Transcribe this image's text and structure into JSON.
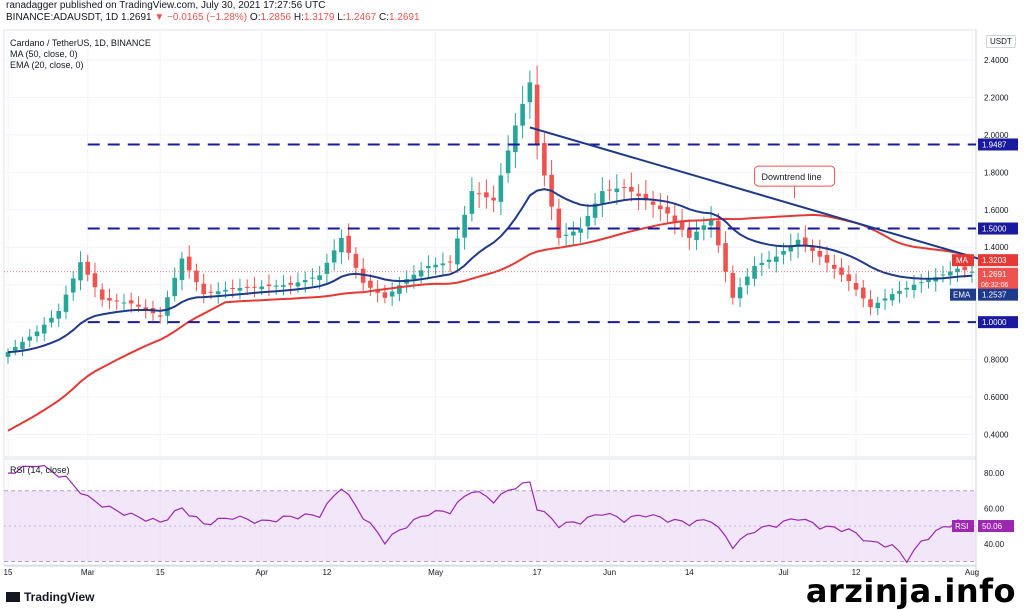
{
  "header": {
    "publisher_line": "ranadagger published on TradingView.com, July 30, 2021 17:27:56 UTC",
    "symbol_line": "BINANCE:ADAUSDT, 1D",
    "price": "1.2691",
    "change": "▼ −0.0165 (−1.28%)",
    "o_label": "O:",
    "o_value": "1.2856",
    "h_label": "H:",
    "h_value": "1.3179",
    "l_label": "L:",
    "l_value": "1.2467",
    "c_label": "C:",
    "c_value": "1.2691"
  },
  "legend": {
    "title": "Cardano / TetherUS, 1D, BINANCE",
    "ma": "MA (50, close, 0)",
    "ema": "EMA (20, close, 0)",
    "rsi": "RSI (14, close)"
  },
  "currency_badge": "USDT",
  "footer": {
    "logo_text": "TradingView",
    "watermark": "arzinja.info"
  },
  "colors": {
    "up": "#26a69a",
    "down": "#ef5350",
    "ema": "#1e3a8a",
    "ma": "#e53935",
    "trendline": "#1e3a8a",
    "dashed": "#1a1aa0",
    "rsi": "#9c27b0",
    "rsi_band": "#e9d5f5"
  },
  "chart_data": [
    {
      "type": "candlestick",
      "title": "Cardano / TetherUS, 1D, BINANCE",
      "y_axis_ticks": [
        "2.4000",
        "2.2000",
        "2.0000",
        "1.8000",
        "1.6000",
        "1.4000",
        "1.2000",
        "1.0000",
        "0.8000",
        "0.6000",
        "0.4000"
      ],
      "y_tick_values": [
        2.4,
        2.2,
        2.0,
        1.8,
        1.6,
        1.4,
        1.2,
        1.0,
        0.8,
        0.6,
        0.4
      ],
      "ylim": [
        0.28,
        2.56
      ],
      "x_axis_ticks": [
        "15",
        "Mar",
        "15",
        "Apr",
        "12",
        "May",
        "17",
        "Jun",
        "14",
        "Jul",
        "12",
        "Aug"
      ],
      "x_tick_index": [
        0,
        11,
        21,
        35,
        44,
        59,
        73,
        83,
        94,
        107,
        117,
        133
      ],
      "n_days": 134,
      "close_anchors": [
        [
          0,
          0.84
        ],
        [
          4,
          0.95
        ],
        [
          7,
          1.06
        ],
        [
          10,
          1.32
        ],
        [
          13,
          1.12
        ],
        [
          17,
          1.1
        ],
        [
          21,
          1.03
        ],
        [
          24,
          1.34
        ],
        [
          27,
          1.15
        ],
        [
          31,
          1.18
        ],
        [
          35,
          1.19
        ],
        [
          39,
          1.2
        ],
        [
          43,
          1.25
        ],
        [
          46,
          1.45
        ],
        [
          49,
          1.21
        ],
        [
          52,
          1.13
        ],
        [
          55,
          1.23
        ],
        [
          58,
          1.3
        ],
        [
          61,
          1.32
        ],
        [
          64,
          1.7
        ],
        [
          67,
          1.65
        ],
        [
          70,
          2.05
        ],
        [
          72,
          2.28
        ],
        [
          73,
          1.95
        ],
        [
          76,
          1.45
        ],
        [
          79,
          1.5
        ],
        [
          82,
          1.7
        ],
        [
          85,
          1.72
        ],
        [
          88,
          1.65
        ],
        [
          91,
          1.58
        ],
        [
          94,
          1.45
        ],
        [
          97,
          1.55
        ],
        [
          100,
          1.13
        ],
        [
          103,
          1.3
        ],
        [
          106,
          1.35
        ],
        [
          109,
          1.44
        ],
        [
          112,
          1.35
        ],
        [
          116,
          1.22
        ],
        [
          119,
          1.08
        ],
        [
          122,
          1.15
        ],
        [
          125,
          1.2
        ],
        [
          128,
          1.24
        ],
        [
          131,
          1.2856
        ],
        [
          133,
          1.2691
        ]
      ],
      "levels": [
        {
          "value": 1.9487,
          "label": "1.9487"
        },
        {
          "value": 1.5,
          "label": "1.5000"
        },
        {
          "value": 1.0,
          "label": "1.0000"
        }
      ],
      "trendline": {
        "from": [
          72,
          2.04
        ],
        "to": [
          133,
          1.32
        ],
        "label": "Downtrend line"
      },
      "badges": [
        {
          "name": "MA",
          "value": "1.3203"
        },
        {
          "name": "price",
          "value": "1.2691",
          "sub": "06:32:06"
        },
        {
          "name": "EMA",
          "value": "1.2537"
        }
      ]
    },
    {
      "type": "line",
      "title": "RSI (14, close)",
      "y_axis_ticks": [
        "80.00",
        "60.00",
        "40.00"
      ],
      "y_tick_values": [
        80,
        60,
        40
      ],
      "ylim": [
        28,
        88
      ],
      "band": [
        30,
        70
      ],
      "current": "50.06",
      "rsi_anchors": [
        [
          0,
          80
        ],
        [
          4,
          85
        ],
        [
          8,
          77
        ],
        [
          11,
          66
        ],
        [
          14,
          60
        ],
        [
          17,
          56
        ],
        [
          21,
          52
        ],
        [
          24,
          60
        ],
        [
          27,
          51
        ],
        [
          31,
          55
        ],
        [
          35,
          52
        ],
        [
          39,
          55
        ],
        [
          43,
          56
        ],
        [
          46,
          72
        ],
        [
          49,
          55
        ],
        [
          52,
          41
        ],
        [
          55,
          50
        ],
        [
          58,
          57
        ],
        [
          61,
          58
        ],
        [
          64,
          70
        ],
        [
          67,
          64
        ],
        [
          70,
          72
        ],
        [
          72,
          74
        ],
        [
          73,
          60
        ],
        [
          76,
          50
        ],
        [
          79,
          52
        ],
        [
          82,
          57
        ],
        [
          85,
          53
        ],
        [
          88,
          56
        ],
        [
          91,
          53
        ],
        [
          94,
          51
        ],
        [
          97,
          53
        ],
        [
          100,
          38
        ],
        [
          103,
          47
        ],
        [
          106,
          50
        ],
        [
          109,
          54
        ],
        [
          112,
          49
        ],
        [
          116,
          47
        ],
        [
          119,
          40
        ],
        [
          122,
          38
        ],
        [
          124,
          30
        ],
        [
          126,
          40
        ],
        [
          128,
          46
        ],
        [
          131,
          52
        ],
        [
          133,
          50.06
        ]
      ]
    }
  ]
}
